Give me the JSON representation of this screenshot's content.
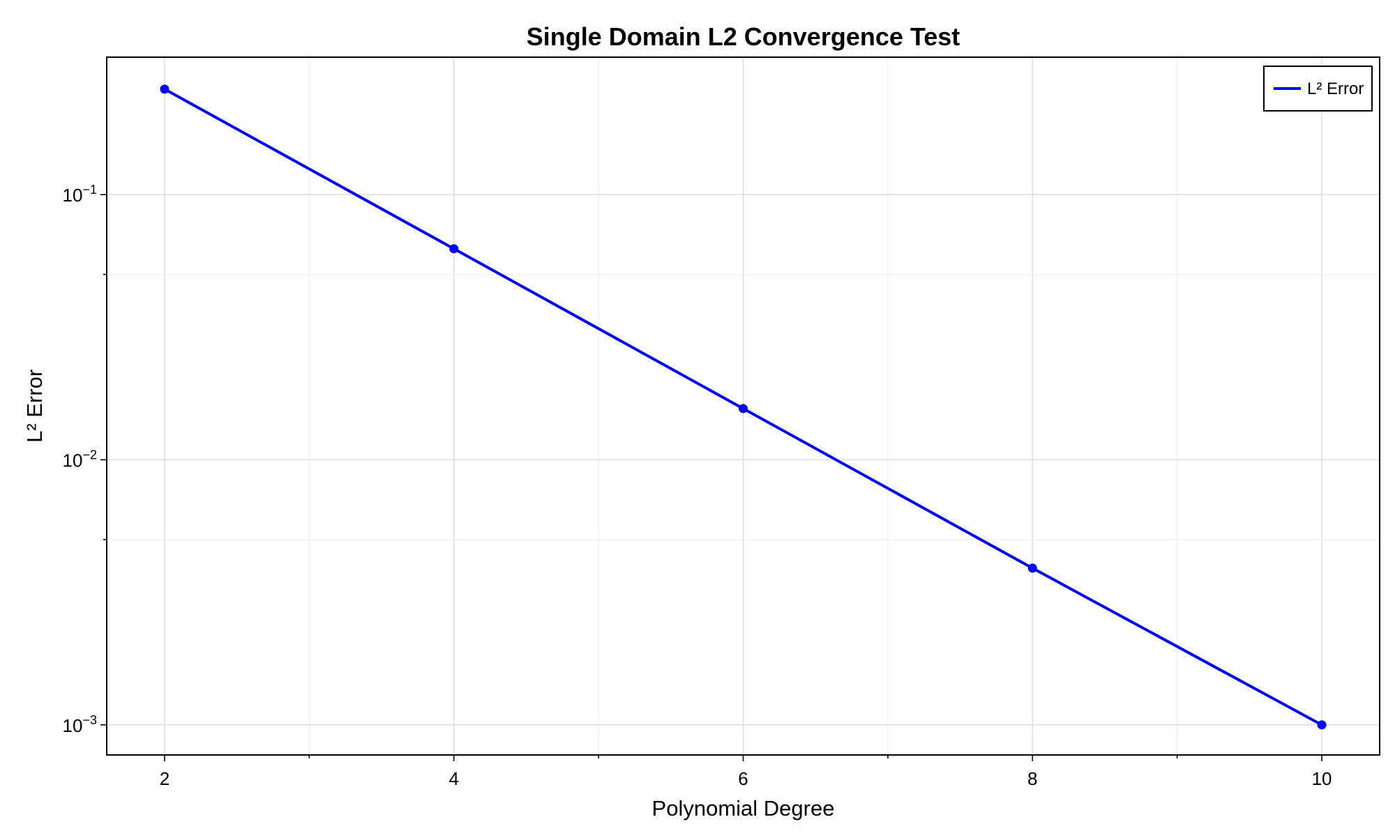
{
  "chart_data": {
    "type": "line",
    "title": "Single Domain L2 Convergence Test",
    "xlabel": "Polynomial Degree",
    "ylabel": "L² Error",
    "yscale": "log",
    "xlim": [
      1.6,
      10.4
    ],
    "ylim": [
      0.00077,
      0.33
    ],
    "x_ticks": [
      2,
      4,
      6,
      8,
      10
    ],
    "x_tick_labels": [
      "2",
      "4",
      "6",
      "8",
      "10"
    ],
    "x_minor_ticks": [
      3,
      5,
      7,
      9
    ],
    "y_ticks": [
      0.1,
      0.01,
      0.001
    ],
    "y_tick_labels": [
      {
        "base": "10",
        "exp": "−1"
      },
      {
        "base": "10",
        "exp": "−2"
      },
      {
        "base": "10",
        "exp": "−3"
      }
    ],
    "y_minor_ticks": [
      0.05,
      0.005
    ],
    "grid": true,
    "legend_position": "top-right",
    "series": [
      {
        "name": "L² Error",
        "color": "#0000ff",
        "marker": "circle",
        "x": [
          2,
          4,
          6,
          8,
          10
        ],
        "y": [
          0.25,
          0.0625,
          0.0156,
          0.0039,
          0.001
        ]
      }
    ]
  }
}
